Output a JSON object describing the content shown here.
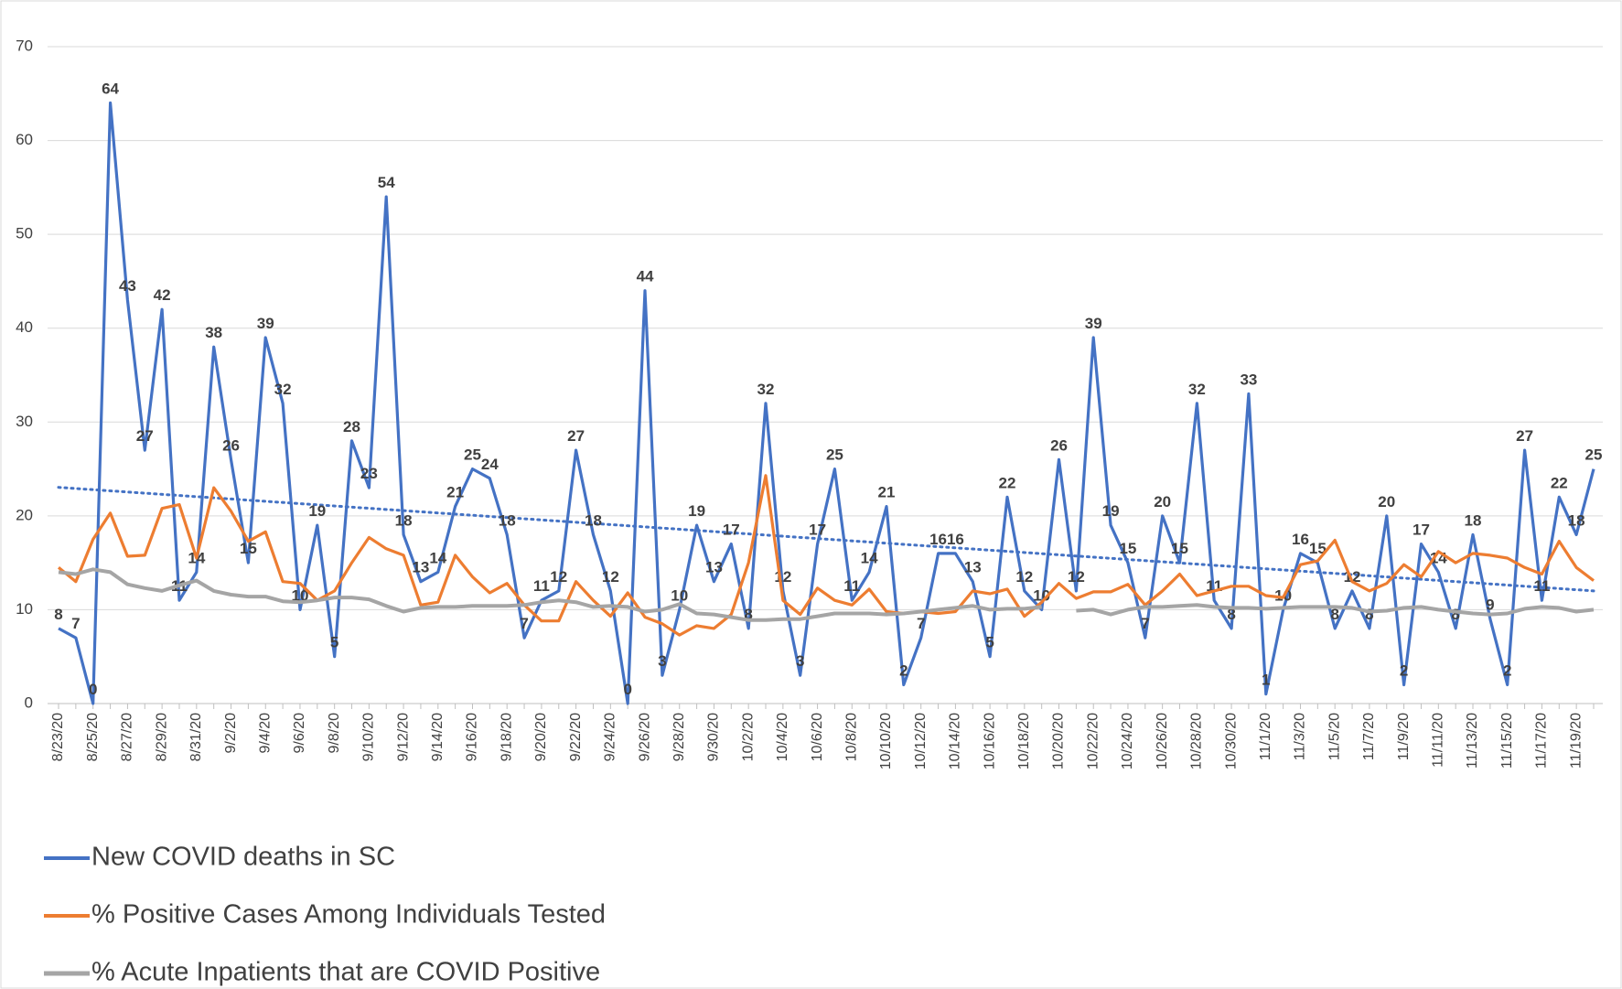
{
  "chart_data": {
    "type": "line",
    "categories": [
      "8/23/20",
      null,
      "8/25/20",
      null,
      "8/27/20",
      null,
      "8/29/20",
      null,
      "8/31/20",
      null,
      "9/2/20",
      null,
      "9/4/20",
      null,
      "9/6/20",
      null,
      "9/8/20",
      null,
      "9/10/20",
      null,
      "9/12/20",
      null,
      "9/14/20",
      null,
      "9/16/20",
      null,
      "9/18/20",
      null,
      "9/20/20",
      null,
      "9/22/20",
      null,
      "9/24/20",
      null,
      "9/26/20",
      null,
      "9/28/20",
      null,
      "9/30/20",
      null,
      "10/2/20",
      null,
      "10/4/20",
      null,
      "10/6/20",
      null,
      "10/8/20",
      null,
      "10/10/20",
      null,
      "10/12/20",
      null,
      "10/14/20",
      null,
      "10/16/20",
      null,
      "10/18/20",
      null,
      "10/20/20",
      null,
      "10/22/20",
      null,
      "10/24/20",
      null,
      "10/26/20",
      null,
      "10/28/20",
      null,
      "10/30/20",
      null,
      "11/1/20",
      null,
      "11/3/20",
      null,
      "11/5/20",
      null,
      "11/7/20",
      null,
      "11/9/20",
      null,
      "11/11/20",
      null,
      "11/13/20",
      null,
      "11/15/20",
      null,
      "11/17/20",
      null,
      "11/19/20",
      null
    ],
    "series": [
      {
        "name": "New COVID deaths in SC",
        "color": "#4472c4",
        "data_labels": true,
        "trendline": true,
        "values": [
          8,
          7,
          0,
          64,
          43,
          27,
          42,
          11,
          14,
          38,
          26,
          15,
          39,
          32,
          10,
          19,
          5,
          28,
          23,
          54,
          18,
          13,
          14,
          21,
          25,
          24,
          18,
          7,
          11,
          12,
          27,
          18,
          12,
          0,
          44,
          3,
          10,
          19,
          13,
          17,
          8,
          32,
          12,
          3,
          17,
          25,
          11,
          14,
          21,
          2,
          7,
          16,
          16,
          13,
          5,
          22,
          12,
          10,
          26,
          12,
          39,
          19,
          15,
          7,
          20,
          15,
          32,
          11,
          8,
          33,
          1,
          10,
          16,
          15,
          8,
          12,
          8,
          20,
          2,
          17,
          14,
          8,
          18,
          9,
          2,
          27,
          11,
          22,
          18,
          25
        ]
      },
      {
        "name": "% Positive Cases Among Individuals Tested",
        "color": "#ed7d31",
        "values": [
          14.5,
          13,
          17.5,
          20.3,
          15.7,
          15.8,
          20.8,
          21.2,
          15.5,
          23,
          20.5,
          17.3,
          18.3,
          13,
          12.8,
          11,
          12,
          15,
          17.7,
          16.5,
          15.8,
          10.5,
          10.8,
          15.8,
          13.5,
          11.8,
          12.8,
          10.5,
          8.8,
          8.8,
          13,
          11,
          9.3,
          11.8,
          9.2,
          8.5,
          7.3,
          8.3,
          8,
          9.5,
          15,
          24.3,
          11,
          9.5,
          12.3,
          11,
          10.5,
          12.2,
          9.8,
          9.6,
          9.8,
          9.6,
          9.8,
          12,
          11.7,
          12.2,
          9.3,
          10.8,
          12.8,
          11.2,
          11.9,
          11.9,
          12.7,
          10.5,
          12,
          13.8,
          11.5,
          12,
          12.5,
          12.5,
          11.5,
          11.3,
          14.8,
          15.2,
          17.4,
          13,
          12,
          12.8,
          14.8,
          13.5,
          16.2,
          15,
          16,
          15.8,
          15.5,
          14.5,
          13.8,
          17.3,
          14.5,
          13.1
        ]
      },
      {
        "name": "% Acute Inpatients that are COVID Positive",
        "color": "#a5a5a5",
        "values": [
          14,
          13.8,
          14.3,
          14,
          12.7,
          12.3,
          12,
          12.6,
          13.1,
          12,
          11.6,
          11.4,
          11.4,
          10.9,
          10.8,
          11,
          11.3,
          11.3,
          11.1,
          10.4,
          9.8,
          10.2,
          10.3,
          10.3,
          10.4,
          10.4,
          10.4,
          10.5,
          10.8,
          11,
          10.8,
          10.3,
          10.4,
          10.3,
          9.8,
          10,
          10.6,
          9.6,
          9.5,
          9.2,
          8.9,
          8.9,
          9,
          9,
          9.3,
          9.6,
          9.6,
          9.6,
          9.5,
          9.6,
          9.8,
          10,
          10.2,
          10.4,
          10,
          10.1,
          10.1,
          10.3,
          null,
          9.9,
          10,
          9.5,
          10,
          10.3,
          10.3,
          10.4,
          10.5,
          10.3,
          10.2,
          10.2,
          10.1,
          10.2,
          10.3,
          10.3,
          10.3,
          10.2,
          9.8,
          9.9,
          10.2,
          10.3,
          10,
          9.8,
          9.6,
          9.5,
          9.6,
          10.1,
          10.3,
          10.2,
          9.8,
          10
        ]
      }
    ],
    "ylim": [
      0,
      70
    ],
    "yticks": [
      0,
      10,
      20,
      30,
      40,
      50,
      60,
      70
    ],
    "grid": true,
    "legend": "bottom"
  }
}
